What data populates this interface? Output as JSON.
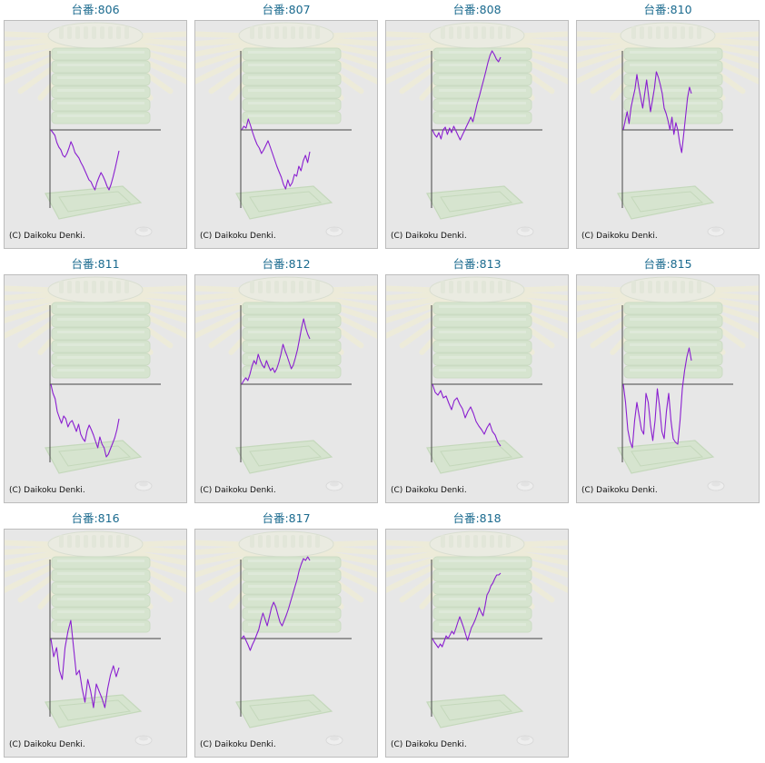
{
  "copyright": "(C) Daikoku Denki.",
  "colors": {
    "title": "#1a6a8e",
    "line": "#8a1fd0",
    "axis": "#444444",
    "background": "#e7e7e7",
    "frame": "#bdbdbd"
  },
  "chart_data": [
    {
      "type": "line",
      "title": "台番:806",
      "values": [
        0,
        -3,
        -6,
        -14,
        -19,
        -22,
        -28,
        -30,
        -26,
        -20,
        -13,
        -18,
        -25,
        -28,
        -31,
        -36,
        -40,
        -45,
        -50,
        -55,
        -57,
        -62,
        -66,
        -58,
        -52,
        -47,
        -51,
        -56,
        -62,
        -66,
        -60,
        -52,
        -43,
        -33,
        -23
      ]
    },
    {
      "type": "line",
      "title": "台番:807",
      "values": [
        0,
        4,
        2,
        12,
        5,
        -3,
        -10,
        -16,
        -20,
        -26,
        -22,
        -17,
        -12,
        -19,
        -26,
        -33,
        -40,
        -46,
        -52,
        -60,
        -65,
        -55,
        -62,
        -58,
        -49,
        -51,
        -40,
        -45,
        -34,
        -28,
        -36,
        -24
      ]
    },
    {
      "type": "line",
      "title": "台番:808",
      "values": [
        0,
        -5,
        -8,
        -3,
        -10,
        0,
        3,
        -5,
        2,
        -3,
        4,
        -1,
        -6,
        -11,
        -6,
        -1,
        4,
        9,
        14,
        9,
        19,
        29,
        37,
        46,
        55,
        64,
        74,
        82,
        87,
        83,
        78,
        75,
        80
      ]
    },
    {
      "type": "line",
      "title": "台番:810",
      "values": [
        0,
        10,
        20,
        7,
        25,
        35,
        45,
        61,
        47,
        35,
        24,
        40,
        55,
        37,
        20,
        33,
        46,
        64,
        58,
        50,
        40,
        24,
        18,
        10,
        0,
        14,
        -5,
        8,
        0,
        -15,
        -25,
        -6,
        15,
        35,
        47,
        40
      ]
    },
    {
      "type": "line",
      "title": "台番:811",
      "values": [
        0,
        -10,
        -16,
        -30,
        -37,
        -43,
        -35,
        -38,
        -47,
        -42,
        -40,
        -46,
        -52,
        -44,
        -55,
        -60,
        -63,
        -51,
        -45,
        -50,
        -56,
        -63,
        -70,
        -58,
        -66,
        -70,
        -80,
        -77,
        -71,
        -65,
        -59,
        -50,
        -38
      ]
    },
    {
      "type": "line",
      "title": "台番:812",
      "values": [
        0,
        4,
        7,
        4,
        11,
        20,
        26,
        22,
        33,
        26,
        21,
        18,
        26,
        20,
        15,
        18,
        13,
        17,
        24,
        33,
        44,
        37,
        31,
        24,
        17,
        21,
        29,
        38,
        50,
        62,
        72,
        62,
        55,
        50
      ]
    },
    {
      "type": "line",
      "title": "台番:813",
      "values": [
        0,
        -9,
        -12,
        -7,
        -15,
        -13,
        -21,
        -28,
        -18,
        -15,
        -22,
        -27,
        -37,
        -30,
        -25,
        -32,
        -41,
        -46,
        -50,
        -55,
        -48,
        -43,
        -52,
        -56,
        -64,
        -68
      ]
    },
    {
      "type": "line",
      "title": "台番:815",
      "values": [
        0,
        -20,
        -50,
        -63,
        -70,
        -40,
        -20,
        -35,
        -50,
        -55,
        -10,
        -20,
        -45,
        -62,
        -40,
        -5,
        -25,
        -52,
        -60,
        -30,
        -10,
        -40,
        -60,
        -64,
        -66,
        -40,
        -5,
        15,
        30,
        40,
        26
      ]
    },
    {
      "type": "line",
      "title": "台番:816",
      "values": [
        0,
        -20,
        -10,
        -35,
        -45,
        -10,
        8,
        20,
        -10,
        -40,
        -35,
        -55,
        -70,
        -45,
        -58,
        -76,
        -50,
        -58,
        -66,
        -76,
        -55,
        -40,
        -30,
        -42,
        -32
      ]
    },
    {
      "type": "line",
      "title": "台番:817",
      "values": [
        0,
        3,
        -2,
        -7,
        -13,
        -7,
        -2,
        4,
        10,
        20,
        28,
        21,
        14,
        24,
        34,
        40,
        35,
        26,
        18,
        14,
        20,
        26,
        33,
        41,
        49,
        57,
        65,
        75,
        82,
        88,
        86,
        90,
        86
      ]
    },
    {
      "type": "line",
      "title": "台番:818",
      "values": [
        0,
        -4,
        -7,
        -10,
        -6,
        -9,
        -3,
        3,
        0,
        4,
        8,
        5,
        11,
        18,
        24,
        18,
        12,
        5,
        -2,
        5,
        12,
        16,
        21,
        27,
        34,
        29,
        25,
        36,
        48,
        52,
        58,
        61,
        66,
        70,
        70,
        72
      ]
    }
  ]
}
